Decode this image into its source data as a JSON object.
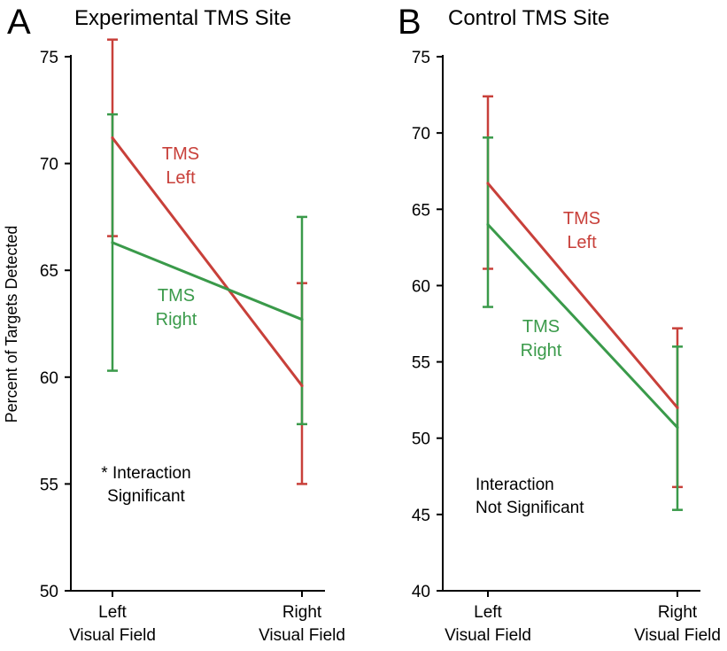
{
  "colors": {
    "left": "#c8403a",
    "right": "#3a9a4a",
    "axis": "#000000",
    "text": "#000000"
  },
  "y_axis_label": "Percent of Targets Detected",
  "chart_data": [
    {
      "type": "line",
      "panel_letter": "A",
      "title": "Experimental TMS Site",
      "categories": [
        "Left|Visual Field",
        "Right|Visual Field"
      ],
      "ylim": [
        50,
        75
      ],
      "yticks": [
        50,
        55,
        60,
        65,
        70,
        75
      ],
      "series": [
        {
          "name": "TMS Left",
          "label_lines": [
            "TMS",
            "Left"
          ],
          "color": "#c8403a",
          "values": [
            71.2,
            59.6
          ],
          "err_low": [
            66.6,
            55.0
          ],
          "err_high": [
            75.8,
            64.4
          ]
        },
        {
          "name": "TMS Right",
          "label_lines": [
            "TMS",
            "Right"
          ],
          "color": "#3a9a4a",
          "values": [
            66.3,
            62.7
          ],
          "err_low": [
            60.3,
            57.8
          ],
          "err_high": [
            72.3,
            67.5
          ]
        }
      ],
      "annotation_lines": [
        "* Interaction",
        "Significant"
      ]
    },
    {
      "type": "line",
      "panel_letter": "B",
      "title": "Control TMS Site",
      "categories": [
        "Left|Visual Field",
        "Right|Visual Field"
      ],
      "ylim": [
        40,
        75
      ],
      "yticks": [
        40,
        45,
        50,
        55,
        60,
        65,
        70,
        75
      ],
      "series": [
        {
          "name": "TMS Left",
          "label_lines": [
            "TMS",
            "Left"
          ],
          "color": "#c8403a",
          "values": [
            66.7,
            52.0
          ],
          "err_low": [
            61.1,
            46.8
          ],
          "err_high": [
            72.4,
            57.2
          ]
        },
        {
          "name": "TMS Right",
          "label_lines": [
            "TMS",
            "Right"
          ],
          "color": "#3a9a4a",
          "values": [
            64.0,
            50.7
          ],
          "err_low": [
            58.6,
            45.3
          ],
          "err_high": [
            69.7,
            56.0
          ]
        }
      ],
      "annotation_lines": [
        "Interaction",
        "Not Significant"
      ]
    }
  ]
}
